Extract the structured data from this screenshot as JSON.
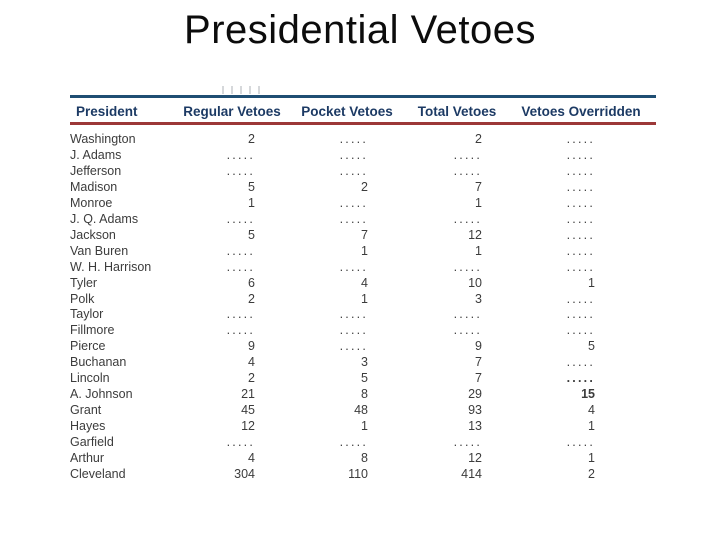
{
  "slide": {
    "title": "Presidential Vetoes"
  },
  "table": {
    "columns": [
      "President",
      "Regular Vetoes",
      "Pocket Vetoes",
      "Total Vetoes",
      "Vetoes Overridden"
    ],
    "rows": [
      {
        "president": "Washington",
        "regular": "2",
        "pocket": ".....",
        "total": "2",
        "overridden": "....."
      },
      {
        "president": "J. Adams",
        "regular": ".....",
        "pocket": ".....",
        "total": ".....",
        "overridden": "....."
      },
      {
        "president": "Jefferson",
        "regular": ".....",
        "pocket": ".....",
        "total": ".....",
        "overridden": "....."
      },
      {
        "president": "Madison",
        "regular": "5",
        "pocket": "2",
        "total": "7",
        "overridden": "....."
      },
      {
        "president": "Monroe",
        "regular": "1",
        "pocket": ".....",
        "total": "1",
        "overridden": "....."
      },
      {
        "president": "J. Q. Adams",
        "regular": ".....",
        "pocket": ".....",
        "total": ".....",
        "overridden": "....."
      },
      {
        "president": "Jackson",
        "regular": "5",
        "pocket": "7",
        "total": "12",
        "overridden": "....."
      },
      {
        "president": "Van Buren",
        "regular": ".....",
        "pocket": "1",
        "total": "1",
        "overridden": "....."
      },
      {
        "president": "W. H. Harrison",
        "regular": ".....",
        "pocket": ".....",
        "total": ".....",
        "overridden": "....."
      },
      {
        "president": "Tyler",
        "regular": "6",
        "pocket": "4",
        "total": "10",
        "overridden": "1"
      },
      {
        "president": "Polk",
        "regular": "2",
        "pocket": "1",
        "total": "3",
        "overridden": "....."
      },
      {
        "president": "Taylor",
        "regular": ".....",
        "pocket": ".....",
        "total": ".....",
        "overridden": "....."
      },
      {
        "president": "Fillmore",
        "regular": ".....",
        "pocket": ".....",
        "total": ".....",
        "overridden": "....."
      },
      {
        "president": "Pierce",
        "regular": "9",
        "pocket": ".....",
        "total": "9",
        "overridden": "5"
      },
      {
        "president": "Buchanan",
        "regular": "4",
        "pocket": "3",
        "total": "7",
        "overridden": "....."
      },
      {
        "president": "Lincoln",
        "regular": "2",
        "pocket": "5",
        "total": "7",
        "overridden": ".....",
        "overridden_bold": true
      },
      {
        "president": "A. Johnson",
        "regular": "21",
        "pocket": "8",
        "total": "29",
        "overridden": "15",
        "overridden_bold": true
      },
      {
        "president": "Grant",
        "regular": "45",
        "pocket": "48",
        "total": "93",
        "overridden": "4"
      },
      {
        "president": "Hayes",
        "regular": "12",
        "pocket": "1",
        "total": "13",
        "overridden": "1"
      },
      {
        "president": "Garfield",
        "regular": ".....",
        "pocket": ".....",
        "total": ".....",
        "overridden": "....."
      },
      {
        "president": "Arthur",
        "regular": "4",
        "pocket": "8",
        "total": "12",
        "overridden": "1"
      },
      {
        "president": "Cleveland",
        "regular": "304",
        "pocket": "110",
        "total": "414",
        "overridden": "2"
      }
    ],
    "accent_colors": {
      "header_text": "#1c3a64",
      "top_rule": "#1f4e73",
      "bottom_rule": "#9c3838",
      "title_text": "#0c0c0c"
    }
  }
}
